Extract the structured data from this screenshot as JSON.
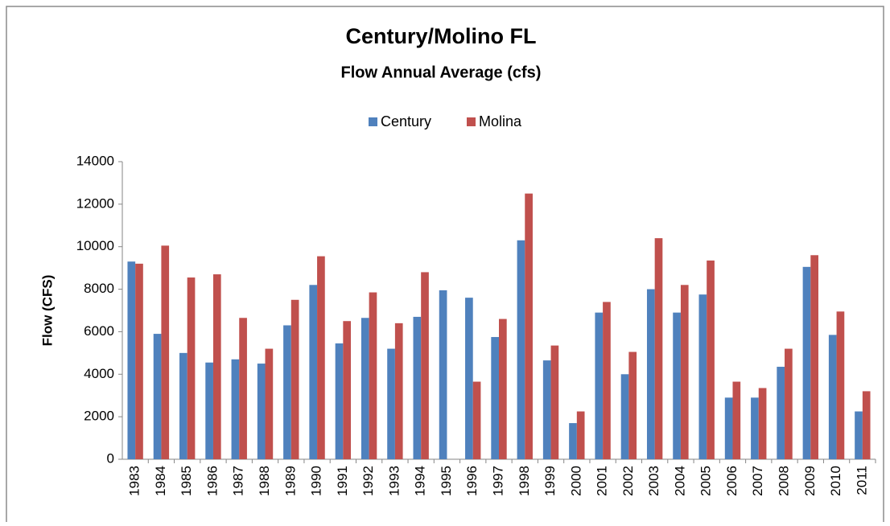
{
  "chart_data": {
    "type": "bar",
    "title": "Century/Molino FL",
    "subtitle": "Flow Annual  Average (cfs)",
    "y_label": "Flow (CFS)",
    "categories": [
      "1983",
      "1984",
      "1985",
      "1986",
      "1987",
      "1988",
      "1989",
      "1990",
      "1991",
      "1992",
      "1993",
      "1994",
      "1995",
      "1996",
      "1997",
      "1998",
      "1999",
      "2000",
      "2001",
      "2002",
      "2003",
      "2004",
      "2005",
      "2006",
      "2007",
      "2008",
      "2009",
      "2010",
      "2011"
    ],
    "series": [
      {
        "name": "Century",
        "color": "#4f81bd",
        "values": [
          9300,
          5900,
          5000,
          4550,
          4700,
          4500,
          6300,
          8200,
          5450,
          6650,
          5200,
          6700,
          7950,
          7600,
          5750,
          10300,
          4650,
          1700,
          6900,
          4000,
          8000,
          6900,
          7750,
          2900,
          2900,
          4350,
          9050,
          5850,
          2250
        ]
      },
      {
        "name": "Molina",
        "color": "#c0504d",
        "values": [
          9200,
          10050,
          8550,
          8700,
          6650,
          5200,
          7500,
          9550,
          6500,
          7850,
          6400,
          8800,
          null,
          3650,
          6600,
          12500,
          5350,
          2250,
          7400,
          5050,
          10400,
          8200,
          9350,
          3650,
          3350,
          5200,
          9600,
          6950,
          3200
        ]
      }
    ],
    "ylim": [
      0,
      14000
    ],
    "yticks": [
      0,
      2000,
      4000,
      6000,
      8000,
      10000,
      12000,
      14000
    ],
    "grid": false,
    "legend": "top"
  }
}
